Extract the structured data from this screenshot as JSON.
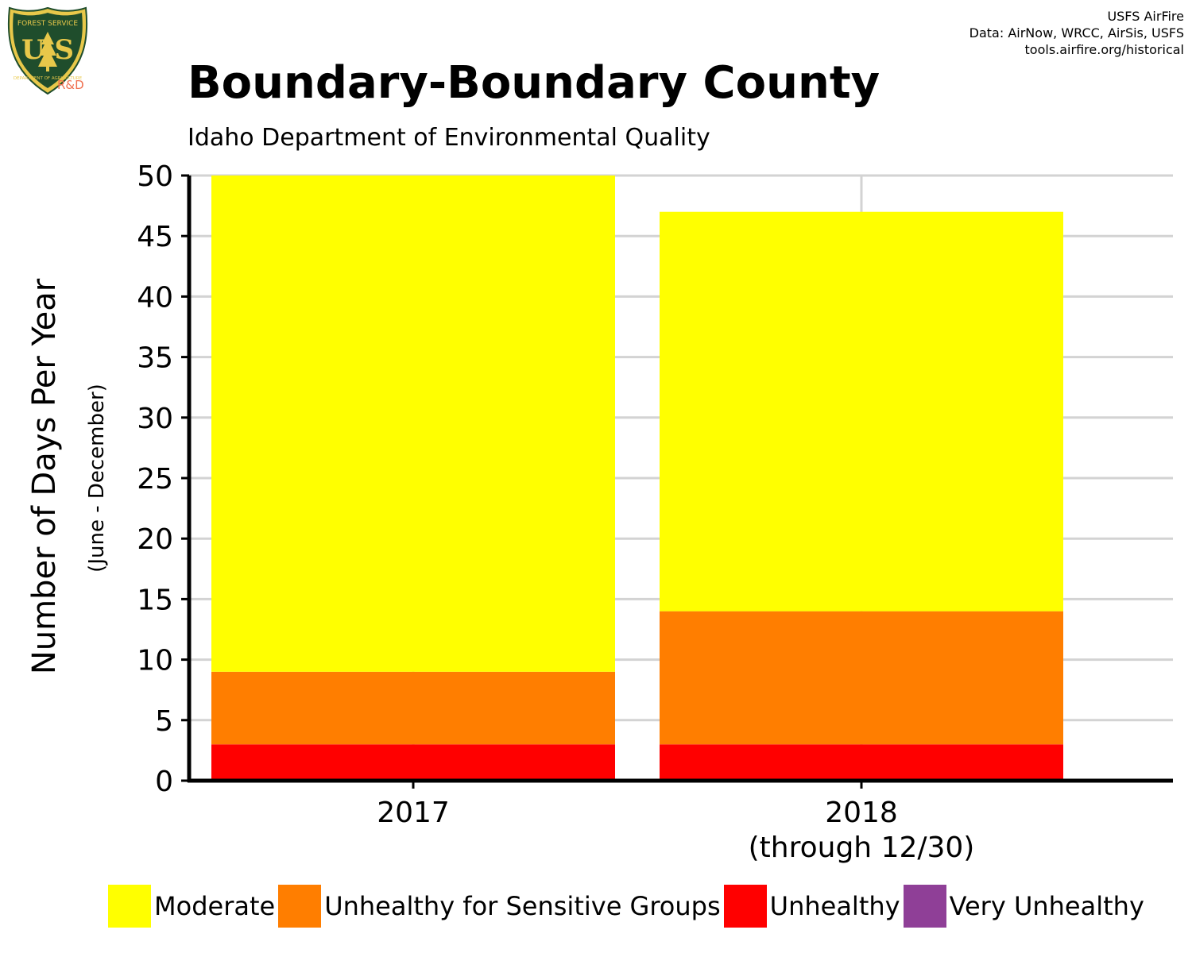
{
  "header": {
    "logo_text_top": "FOREST SERVICE",
    "logo_letters": "U S",
    "logo_text_bottom": "DEPARTMENT OF AGRICULTURE",
    "logo_rd": "R&D",
    "credit_lines": [
      "USFS AirFire",
      "Data: AirNow, WRCC, AirSis, USFS",
      "tools.airfire.org/historical"
    ]
  },
  "colors": {
    "moderate": "#ffff00",
    "usg": "#ff7e00",
    "unhealthy": "#ff0000",
    "very_unhealthy": "#8f3f97",
    "grid": "#d3d3d3",
    "axis": "#000000",
    "logo_green": "#1f4d2c",
    "logo_gold": "#e8c84a"
  },
  "chart_data": {
    "type": "bar",
    "stacked": true,
    "title": "Boundary-Boundary County",
    "subtitle": "Idaho Department of Environmental Quality",
    "ylabel": "Number of Days Per Year",
    "ylabel_secondary": "(June - December)",
    "ylim": [
      0,
      50
    ],
    "yticks": [
      0,
      5,
      10,
      15,
      20,
      25,
      30,
      35,
      40,
      45,
      50
    ],
    "grid": true,
    "categories": [
      "2017",
      "2018\n(through 12/30)"
    ],
    "series": [
      {
        "name": "Unhealthy",
        "color": "#ff0000",
        "values": [
          3,
          3
        ]
      },
      {
        "name": "Unhealthy for Sensitive Groups",
        "color": "#ff7e00",
        "values": [
          6,
          11
        ]
      },
      {
        "name": "Moderate",
        "color": "#ffff00",
        "values": [
          41,
          33
        ]
      },
      {
        "name": "Very Unhealthy",
        "color": "#8f3f97",
        "values": [
          0,
          0
        ]
      }
    ],
    "legend_position": "bottom",
    "legend": [
      {
        "name": "Moderate",
        "color": "#ffff00"
      },
      {
        "name": "Unhealthy for Sensitive Groups",
        "color": "#ff7e00"
      },
      {
        "name": "Unhealthy",
        "color": "#ff0000"
      },
      {
        "name": "Very Unhealthy",
        "color": "#8f3f97"
      }
    ]
  }
}
